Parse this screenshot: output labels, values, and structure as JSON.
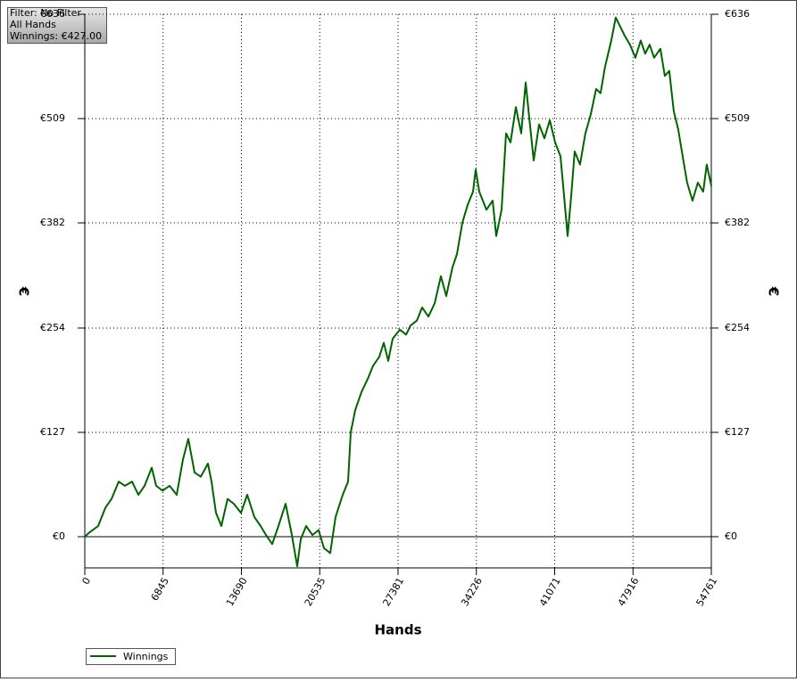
{
  "info_box": [
    "Filter: No Filter",
    "All Hands",
    "Winnings: €427.00"
  ],
  "chart_data": {
    "type": "line",
    "xlabel": "Hands",
    "ylabel": "€",
    "xlim": [
      0,
      54761
    ],
    "xticks": [
      0,
      6845,
      13690,
      20535,
      27381,
      34226,
      41071,
      47916,
      54761
    ],
    "ylim": [
      -38,
      636
    ],
    "yticks": [
      {
        "value": 0,
        "label": "€0"
      },
      {
        "value": 127,
        "label": "€127"
      },
      {
        "value": 254,
        "label": "€254"
      },
      {
        "value": 382,
        "label": "€382"
      },
      {
        "value": 509,
        "label": "€509"
      },
      {
        "value": 636,
        "label": "€636"
      }
    ],
    "grid": true,
    "legend": "bottom-left",
    "series": [
      {
        "name": "Winnings",
        "color": "#006400",
        "x": [
          0,
          390,
          1170,
          1794,
          2340,
          2964,
          3510,
          4134,
          4680,
          5226,
          5850,
          6240,
          6786,
          7410,
          8034,
          8580,
          9048,
          9594,
          10140,
          10764,
          11076,
          11466,
          11934,
          12480,
          13026,
          13650,
          14196,
          14820,
          15366,
          15834,
          16380,
          16926,
          17550,
          18096,
          18564,
          18876,
          19344,
          19890,
          20436,
          20904,
          21450,
          21918,
          22542,
          23010,
          23244,
          23634,
          24180,
          24726,
          25194,
          25740,
          26130,
          26520,
          26910,
          27534,
          28080,
          28470,
          29016,
          29484,
          30030,
          30576,
          31122,
          31590,
          32136,
          32526,
          32994,
          33462,
          33930,
          34164,
          34476,
          35100,
          35646,
          35958,
          36426,
          36816,
          37206,
          37674,
          38142,
          38532,
          38844,
          39234,
          39702,
          40170,
          40638,
          41106,
          41574,
          41886,
          42198,
          42510,
          42822,
          43290,
          43758,
          44226,
          44694,
          45084,
          45474,
          46020,
          46410,
          46800,
          47190,
          47658,
          48126,
          48594,
          48984,
          49374,
          49764,
          50310,
          50700,
          51090,
          51480,
          51870,
          52260,
          52650,
          53118,
          53586,
          54054,
          54366,
          54761
        ],
        "values": [
          0,
          5,
          13,
          35,
          46,
          67,
          62,
          67,
          51,
          62,
          84,
          62,
          56,
          62,
          51,
          94,
          119,
          78,
          73,
          89,
          67,
          29,
          13,
          46,
          40,
          29,
          51,
          24,
          13,
          2,
          -9,
          13,
          40,
          2,
          -36,
          -3,
          13,
          2,
          8,
          -14,
          -20,
          24,
          51,
          67,
          127,
          154,
          176,
          192,
          208,
          219,
          236,
          214,
          241,
          252,
          246,
          257,
          263,
          279,
          268,
          284,
          317,
          293,
          328,
          344,
          382,
          404,
          420,
          447,
          420,
          398,
          409,
          366,
          398,
          491,
          480,
          523,
          491,
          553,
          510,
          458,
          502,
          485,
          507,
          480,
          463,
          415,
          366,
          415,
          469,
          453,
          491,
          514,
          545,
          540,
          572,
          604,
          632,
          621,
          610,
          599,
          583,
          604,
          588,
          599,
          583,
          594,
          561,
          567,
          518,
          496,
          463,
          431,
          409,
          431,
          420,
          453,
          427
        ]
      }
    ]
  }
}
